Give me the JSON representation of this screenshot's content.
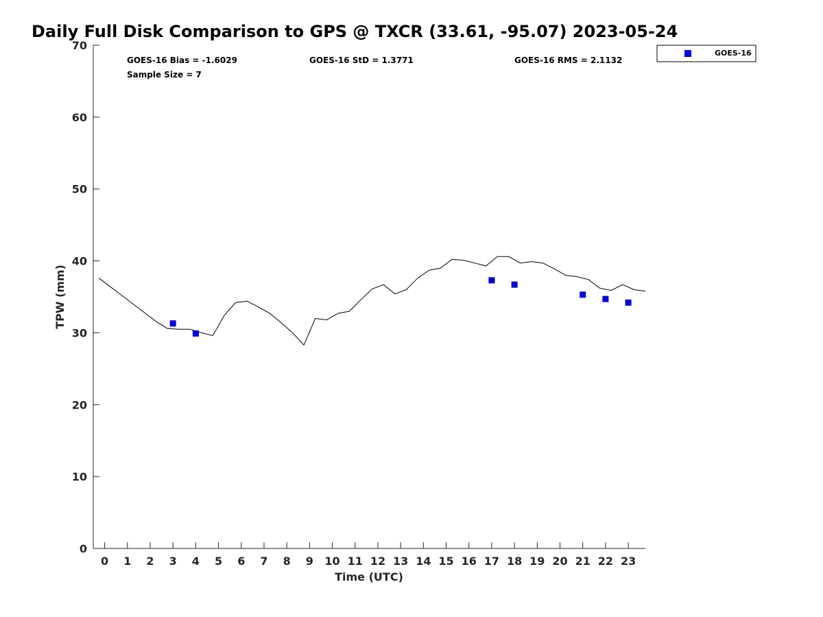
{
  "chart_data": {
    "type": "line",
    "title": "Daily Full Disk Comparison to GPS @ TXCR (33.61, -95.07) 2023-05-24",
    "xlabel": "Time (UTC)",
    "ylabel": "TPW (mm)",
    "xlim": [
      -0.5,
      23.75
    ],
    "ylim": [
      0,
      70
    ],
    "x_ticks": [
      0,
      1,
      2,
      3,
      4,
      5,
      6,
      7,
      8,
      9,
      10,
      11,
      12,
      13,
      14,
      15,
      16,
      17,
      18,
      19,
      20,
      21,
      22,
      23
    ],
    "y_ticks": [
      0,
      10,
      20,
      30,
      40,
      50,
      60,
      70
    ],
    "grid": false,
    "legend_position": "top-right outside",
    "stats": {
      "bias": "GOES-16 Bias = -1.6029",
      "std": "GOES-16 StD = 1.3771",
      "rms": "GOES-16 RMS = 2.1132",
      "sample": "Sample Size = 7"
    },
    "series": [
      {
        "kind": "line",
        "color": "#000000",
        "x": [
          -0.25,
          0.25,
          0.75,
          1.25,
          1.75,
          2.25,
          2.75,
          3.25,
          3.75,
          4.25,
          4.75,
          5.25,
          5.75,
          6.25,
          6.75,
          7.25,
          7.75,
          8.25,
          8.75,
          9.25,
          9.75,
          10.25,
          10.75,
          11.25,
          11.75,
          12.25,
          12.75,
          13.25,
          13.75,
          14.25,
          14.75,
          15.25,
          15.75,
          16.25,
          16.75,
          17.25,
          17.75,
          18.25,
          18.75,
          19.25,
          19.75,
          20.25,
          20.75,
          21.25,
          21.75,
          22.25,
          22.75,
          23.25,
          23.75
        ],
        "y": [
          37.6,
          36.4,
          35.2,
          34.0,
          32.8,
          31.6,
          30.6,
          30.5,
          30.5,
          30.0,
          29.6,
          32.4,
          34.2,
          34.4,
          33.6,
          32.7,
          31.4,
          30.0,
          28.3,
          32.0,
          31.8,
          32.7,
          33.0,
          34.6,
          36.1,
          36.7,
          35.4,
          36.0,
          37.6,
          38.7,
          39.0,
          40.2,
          40.1,
          39.7,
          39.3,
          40.6,
          40.6,
          39.7,
          39.9,
          39.7,
          38.9,
          38.0,
          37.8,
          37.4,
          36.2,
          35.9,
          36.7,
          36.0,
          35.8
        ]
      },
      {
        "kind": "scatter",
        "name": "GOES-16",
        "color": "#0000dd",
        "x": [
          3,
          4,
          17,
          18,
          21,
          22,
          23
        ],
        "y": [
          31.3,
          29.9,
          37.3,
          36.7,
          35.3,
          34.7,
          34.2
        ]
      }
    ]
  }
}
